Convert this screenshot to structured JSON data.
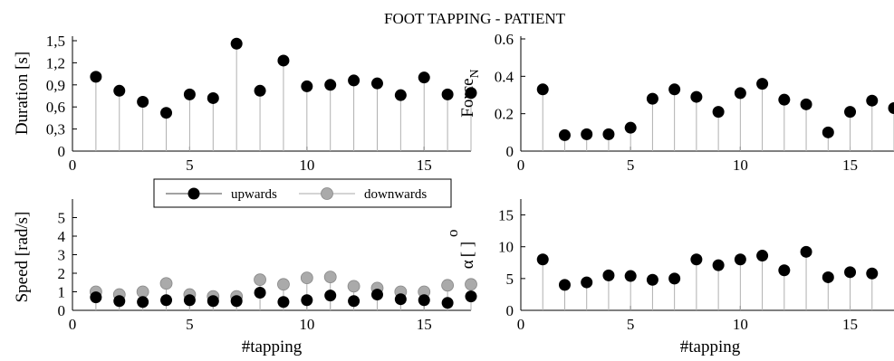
{
  "figure_title": "FOOT TAPPING - PATIENT",
  "chart_data": [
    {
      "id": "duration",
      "type": "stem",
      "ylabel": "Duration [s]",
      "xlabel": "",
      "xlim": [
        0,
        17
      ],
      "ylim": [
        0,
        1.5
      ],
      "xticks": [
        "0",
        "5",
        "10",
        "15"
      ],
      "yticks": [
        "0",
        "0,3",
        "0,6",
        "0,9",
        "1,2",
        "1,5"
      ],
      "series": [
        {
          "color": "#000000",
          "x": [
            1,
            2,
            3,
            4,
            5,
            6,
            7,
            8,
            9,
            10,
            11,
            12,
            13,
            14,
            15,
            16,
            17
          ],
          "y": [
            1.01,
            0.82,
            0.67,
            0.52,
            0.77,
            0.72,
            1.46,
            0.82,
            1.23,
            0.88,
            0.9,
            0.96,
            0.92,
            0.76,
            1.0,
            0.77,
            0.79
          ]
        }
      ]
    },
    {
      "id": "force",
      "type": "stem",
      "ylabel": "Force",
      "ylabel_sub": "N",
      "xlabel": "",
      "xlim": [
        0,
        17
      ],
      "ylim": [
        0,
        0.6
      ],
      "xticks": [
        "0",
        "5",
        "10",
        "15"
      ],
      "yticks": [
        "0",
        "0.2",
        "0.4",
        "0.6"
      ],
      "series": [
        {
          "color": "#000000",
          "x": [
            1,
            2,
            3,
            4,
            5,
            6,
            7,
            8,
            9,
            10,
            11,
            12,
            13,
            14,
            15,
            16,
            17
          ],
          "y": [
            0.33,
            0.085,
            0.09,
            0.09,
            0.125,
            0.28,
            0.33,
            0.29,
            0.21,
            0.31,
            0.36,
            0.275,
            0.25,
            0.1,
            0.21,
            0.27,
            0.23
          ]
        }
      ]
    },
    {
      "id": "speed",
      "type": "stem",
      "ylabel": "Speed [rad/s]",
      "xlabel": "#tapping",
      "xlim": [
        0,
        17
      ],
      "ylim": [
        0,
        6
      ],
      "xticks": [
        "0",
        "5",
        "10",
        "15"
      ],
      "yticks": [
        "0",
        "1",
        "2",
        "3",
        "4",
        "5"
      ],
      "legend": {
        "placement": "top",
        "entries": [
          "upwards",
          "downwards"
        ]
      },
      "series": [
        {
          "name": "downwards",
          "color": "#aaaaaa",
          "x": [
            1,
            2,
            3,
            4,
            5,
            6,
            7,
            8,
            9,
            10,
            11,
            12,
            13,
            14,
            15,
            16,
            17
          ],
          "y": [
            1.0,
            0.85,
            1.0,
            1.45,
            0.85,
            0.75,
            0.75,
            1.65,
            1.4,
            1.75,
            1.8,
            1.3,
            1.2,
            1.0,
            1.0,
            1.35,
            1.4
          ]
        },
        {
          "name": "upwards",
          "color": "#000000",
          "x": [
            1,
            2,
            3,
            4,
            5,
            6,
            7,
            8,
            9,
            10,
            11,
            12,
            13,
            14,
            15,
            16,
            17
          ],
          "y": [
            0.7,
            0.5,
            0.45,
            0.55,
            0.55,
            0.5,
            0.5,
            0.95,
            0.45,
            0.55,
            0.8,
            0.5,
            0.85,
            0.6,
            0.55,
            0.4,
            0.75
          ]
        }
      ]
    },
    {
      "id": "alpha",
      "type": "stem",
      "ylabel": "α",
      "ylabel_unit": "[ ]",
      "ylabel_sup": "o",
      "xlabel": "#tapping",
      "xlim": [
        0,
        17
      ],
      "ylim": [
        0,
        17.5
      ],
      "xticks": [
        "0",
        "5",
        "10",
        "15"
      ],
      "yticks": [
        "0",
        "5",
        "10",
        "15"
      ],
      "series": [
        {
          "color": "#000000",
          "x": [
            1,
            2,
            3,
            4,
            5,
            6,
            7,
            8,
            9,
            10,
            11,
            12,
            13,
            14,
            15,
            16
          ],
          "y": [
            8.0,
            4.0,
            4.4,
            5.5,
            5.4,
            4.8,
            5.0,
            8.0,
            7.1,
            8.0,
            8.6,
            6.3,
            9.2,
            5.2,
            6.0,
            5.8
          ]
        }
      ]
    }
  ]
}
